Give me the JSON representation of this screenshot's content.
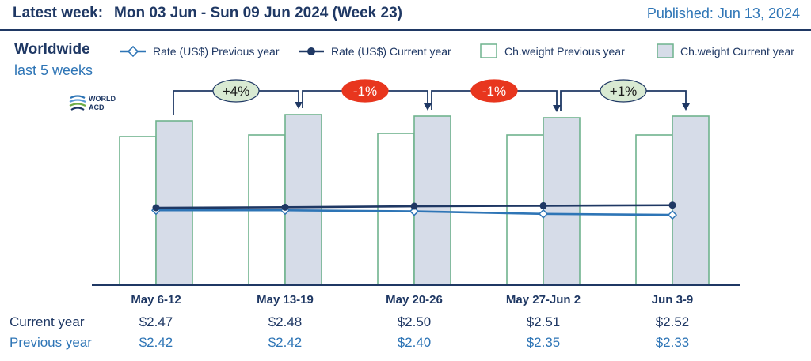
{
  "header": {
    "latest_label": "Latest week:",
    "week_text": "Mon 03 Jun - Sun 09 Jun 2024 (Week 23)",
    "published": "Published: Jun 13, 2024"
  },
  "region": "Worldwide",
  "period": "last 5 weeks",
  "logo": {
    "line1": "WORLD",
    "line2": "ACD"
  },
  "legend": {
    "rate_prev": "Rate (US$) Previous year",
    "rate_cur": "Rate (US$) Current year",
    "cw_prev": "Ch.weight Previous year",
    "cw_cur": "Ch.weight Current year"
  },
  "colors": {
    "navy": "#1f3864",
    "light_blue": "#2e75b6",
    "bar_border": "#6fb38e",
    "bar_cur_fill": "#d6dce8",
    "bar_prev_fill": "#ffffff",
    "badge_green": "#d9ead3",
    "badge_red": "#e8361e"
  },
  "chart_data": {
    "type": "bar",
    "categories": [
      "May 6-12",
      "May 13-19",
      "May 20-26",
      "May 27-Jun 2",
      "Jun 3-9"
    ],
    "chargeable_weight_index": {
      "previous_year": [
        94,
        95,
        96,
        95,
        95
      ],
      "current_year": [
        104,
        108,
        107,
        106,
        107
      ]
    },
    "rate_usd": {
      "current_year": [
        2.47,
        2.48,
        2.5,
        2.51,
        2.52
      ],
      "previous_year": [
        2.42,
        2.42,
        2.4,
        2.35,
        2.33
      ]
    },
    "week_on_week_change": [
      "+4%",
      "-1%",
      "-1%",
      "+1%"
    ],
    "change_direction": [
      "up",
      "down",
      "down",
      "up"
    ]
  },
  "table": {
    "current_label": "Current year",
    "previous_label": "Previous year",
    "current_values": [
      "$2.47",
      "$2.48",
      "$2.50",
      "$2.51",
      "$2.52"
    ],
    "previous_values": [
      "$2.42",
      "$2.42",
      "$2.40",
      "$2.35",
      "$2.33"
    ]
  }
}
